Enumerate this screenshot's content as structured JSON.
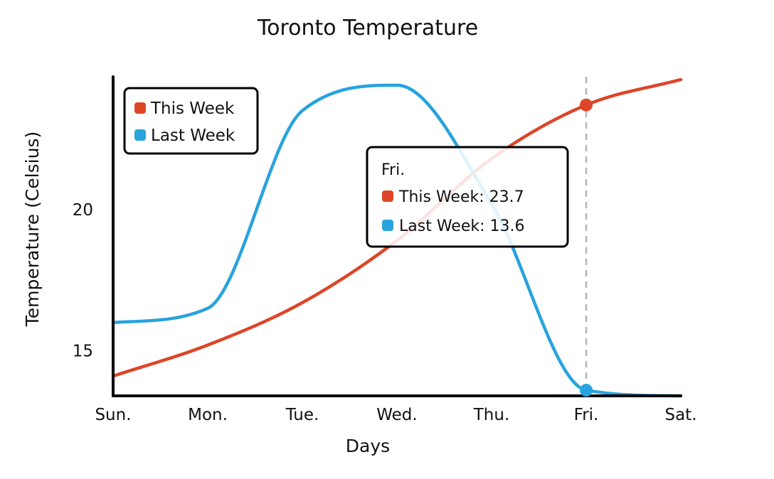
{
  "chart_data": {
    "type": "line",
    "title": "Toronto Temperature",
    "xlabel": "Days",
    "ylabel": "Temperature (Celsius)",
    "categories": [
      "Sun.",
      "Mon.",
      "Tue.",
      "Wed.",
      "Thu.",
      "Fri.",
      "Sat."
    ],
    "y_ticks": [
      15,
      20
    ],
    "ylim": [
      13.4,
      24.7
    ],
    "series": [
      {
        "name": "This Week",
        "color": "#dd4528",
        "values": [
          14.1,
          15.2,
          16.7,
          18.9,
          21.8,
          23.7,
          24.6
        ]
      },
      {
        "name": "Last Week",
        "color": "#28a3dd",
        "values": [
          16.0,
          16.5,
          23.5,
          24.4,
          20.2,
          13.6,
          13.4
        ]
      }
    ],
    "legend_position": "top-left",
    "grid": false,
    "highlight": {
      "label": "Fri.",
      "category_index": 5,
      "entries": [
        {
          "text": "This Week: 23.7",
          "color": "#dd4528"
        },
        {
          "text": "Last Week: 13.6",
          "color": "#28a3dd"
        }
      ]
    }
  }
}
